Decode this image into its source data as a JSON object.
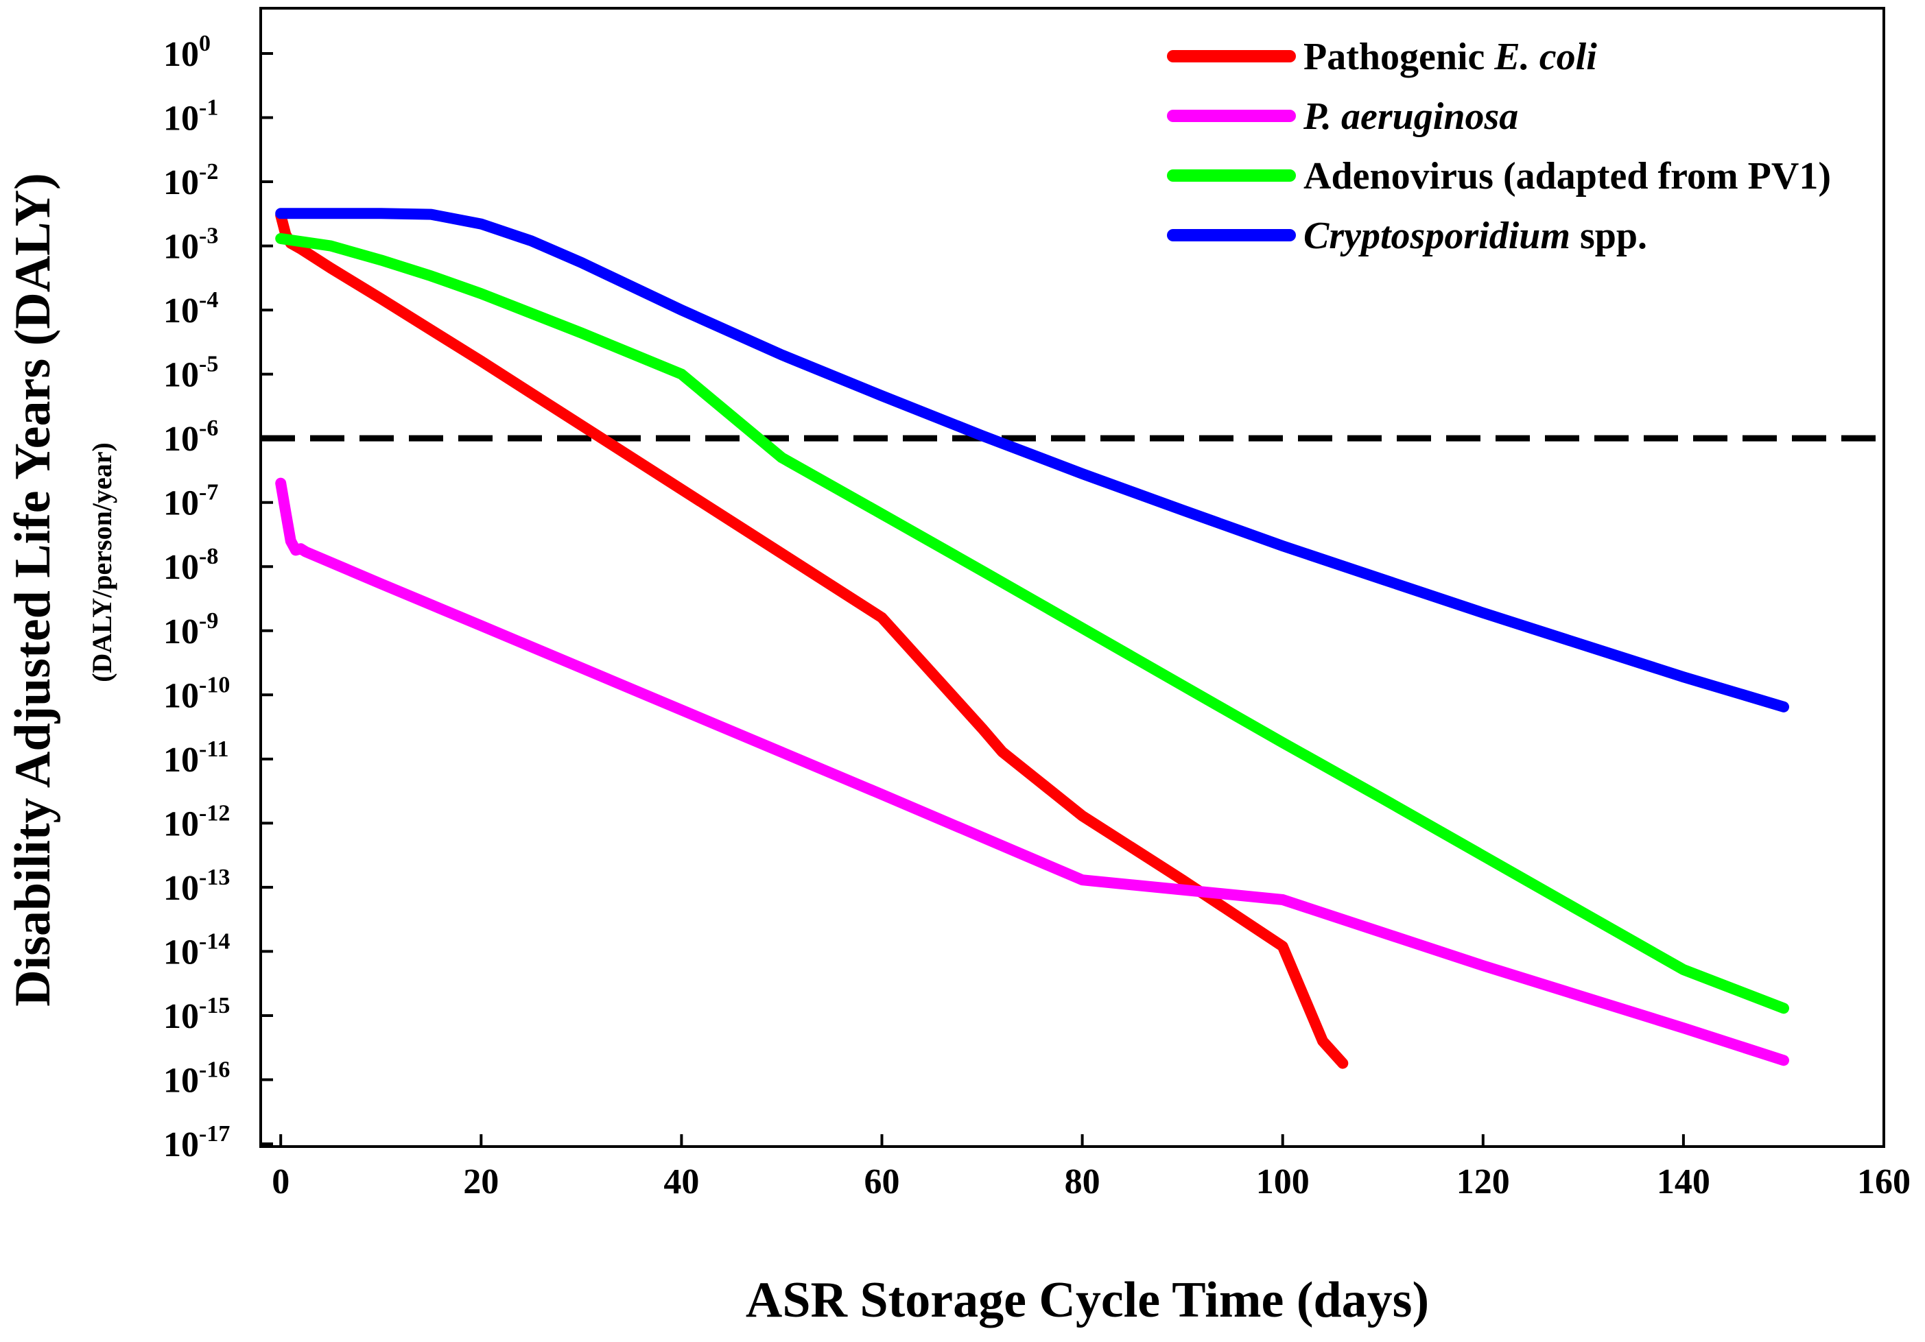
{
  "chart_data": {
    "type": "line",
    "xlabel": "ASR Storage Cycle Time (days)",
    "ylabel": "Disability Adjusted Life Years (DALY)",
    "ylabel_sub": "(DALY/person/year)",
    "xlim": [
      -2,
      160
    ],
    "ylim_exponent": [
      -17,
      0
    ],
    "yscale": "log",
    "x_ticks": [
      0,
      20,
      40,
      60,
      80,
      100,
      120,
      140,
      160
    ],
    "y_tick_base": "10",
    "y_tick_exponents": [
      "0",
      "-1",
      "-2",
      "-3",
      "-4",
      "-5",
      "-6",
      "-7",
      "-8",
      "-9",
      "-10",
      "-11",
      "-12",
      "-13",
      "-14",
      "-15",
      "-16",
      "-17"
    ],
    "grid": false,
    "legend_position": "top-right",
    "reference_line": {
      "y": 1e-06,
      "style": "dashed",
      "color": "#000000"
    },
    "series": [
      {
        "name": "Pathogenic ",
        "name_italic": "E. coli",
        "color": "#ff0000",
        "points": [
          [
            0,
            0.003
          ],
          [
            0.5,
            0.0015
          ],
          [
            1,
            0.0011
          ],
          [
            2,
            0.0009
          ],
          [
            5,
            0.00045
          ],
          [
            10,
            0.00015
          ],
          [
            20,
            1.6e-05
          ],
          [
            30,
            1.6e-06
          ],
          [
            40,
            1.6e-07
          ],
          [
            50,
            1.6e-08
          ],
          [
            60,
            1.6e-09
          ],
          [
            70,
            3e-11
          ],
          [
            72,
            1.3e-11
          ],
          [
            80,
            1.3e-12
          ],
          [
            90,
            1.3e-13
          ],
          [
            100,
            1.2e-14
          ],
          [
            104,
            4e-16
          ],
          [
            106,
            1.8e-16
          ]
        ]
      },
      {
        "name": "",
        "name_italic": "P. aeruginosa",
        "color": "#ff00ff",
        "points": [
          [
            0,
            2e-07
          ],
          [
            0.5,
            7e-08
          ],
          [
            1,
            2.5e-08
          ],
          [
            1.5,
            1.8e-08
          ],
          [
            2,
            1.9e-08
          ],
          [
            2.5,
            1.7e-08
          ],
          [
            10,
            5.4e-09
          ],
          [
            20,
            1.2e-09
          ],
          [
            40,
            5.8e-11
          ],
          [
            60,
            2.8e-12
          ],
          [
            80,
            1.3e-13
          ],
          [
            100,
            6.4e-14
          ],
          [
            120,
            6e-15
          ],
          [
            140,
            6.4e-16
          ],
          [
            150,
            2e-16
          ]
        ]
      },
      {
        "name": "Adenovirus (adapted from PV1)",
        "name_italic": "",
        "color": "#00ff00",
        "points": [
          [
            0,
            0.0013
          ],
          [
            5,
            0.001
          ],
          [
            10,
            0.0006
          ],
          [
            15,
            0.00034
          ],
          [
            20,
            0.00018
          ],
          [
            30,
            4.4e-05
          ],
          [
            40,
            1e-05
          ],
          [
            50,
            5e-07
          ],
          [
            60,
            6.6e-08
          ],
          [
            70,
            8.6e-09
          ],
          [
            80,
            1.1e-09
          ],
          [
            90,
            1.4e-10
          ],
          [
            100,
            1.8e-11
          ],
          [
            110,
            2.4e-12
          ],
          [
            120,
            3.1e-13
          ],
          [
            130,
            4e-14
          ],
          [
            140,
            5.2e-15
          ],
          [
            150,
            1.3e-15
          ]
        ]
      },
      {
        "name": "",
        "name_italic": "Cryptosporidium",
        "name_suffix": " spp.",
        "color": "#0000ff",
        "points": [
          [
            0,
            0.0032
          ],
          [
            10,
            0.0032
          ],
          [
            15,
            0.0031
          ],
          [
            20,
            0.0022
          ],
          [
            25,
            0.0012
          ],
          [
            30,
            0.00055
          ],
          [
            40,
            0.0001
          ],
          [
            50,
            2e-05
          ],
          [
            60,
            4.6e-06
          ],
          [
            70,
            1.1e-06
          ],
          [
            80,
            2.8e-07
          ],
          [
            90,
            7.6e-08
          ],
          [
            100,
            2.1e-08
          ],
          [
            110,
            6.3e-09
          ],
          [
            120,
            1.9e-09
          ],
          [
            130,
            6e-10
          ],
          [
            140,
            1.9e-10
          ],
          [
            150,
            6.5e-11
          ]
        ]
      }
    ]
  }
}
